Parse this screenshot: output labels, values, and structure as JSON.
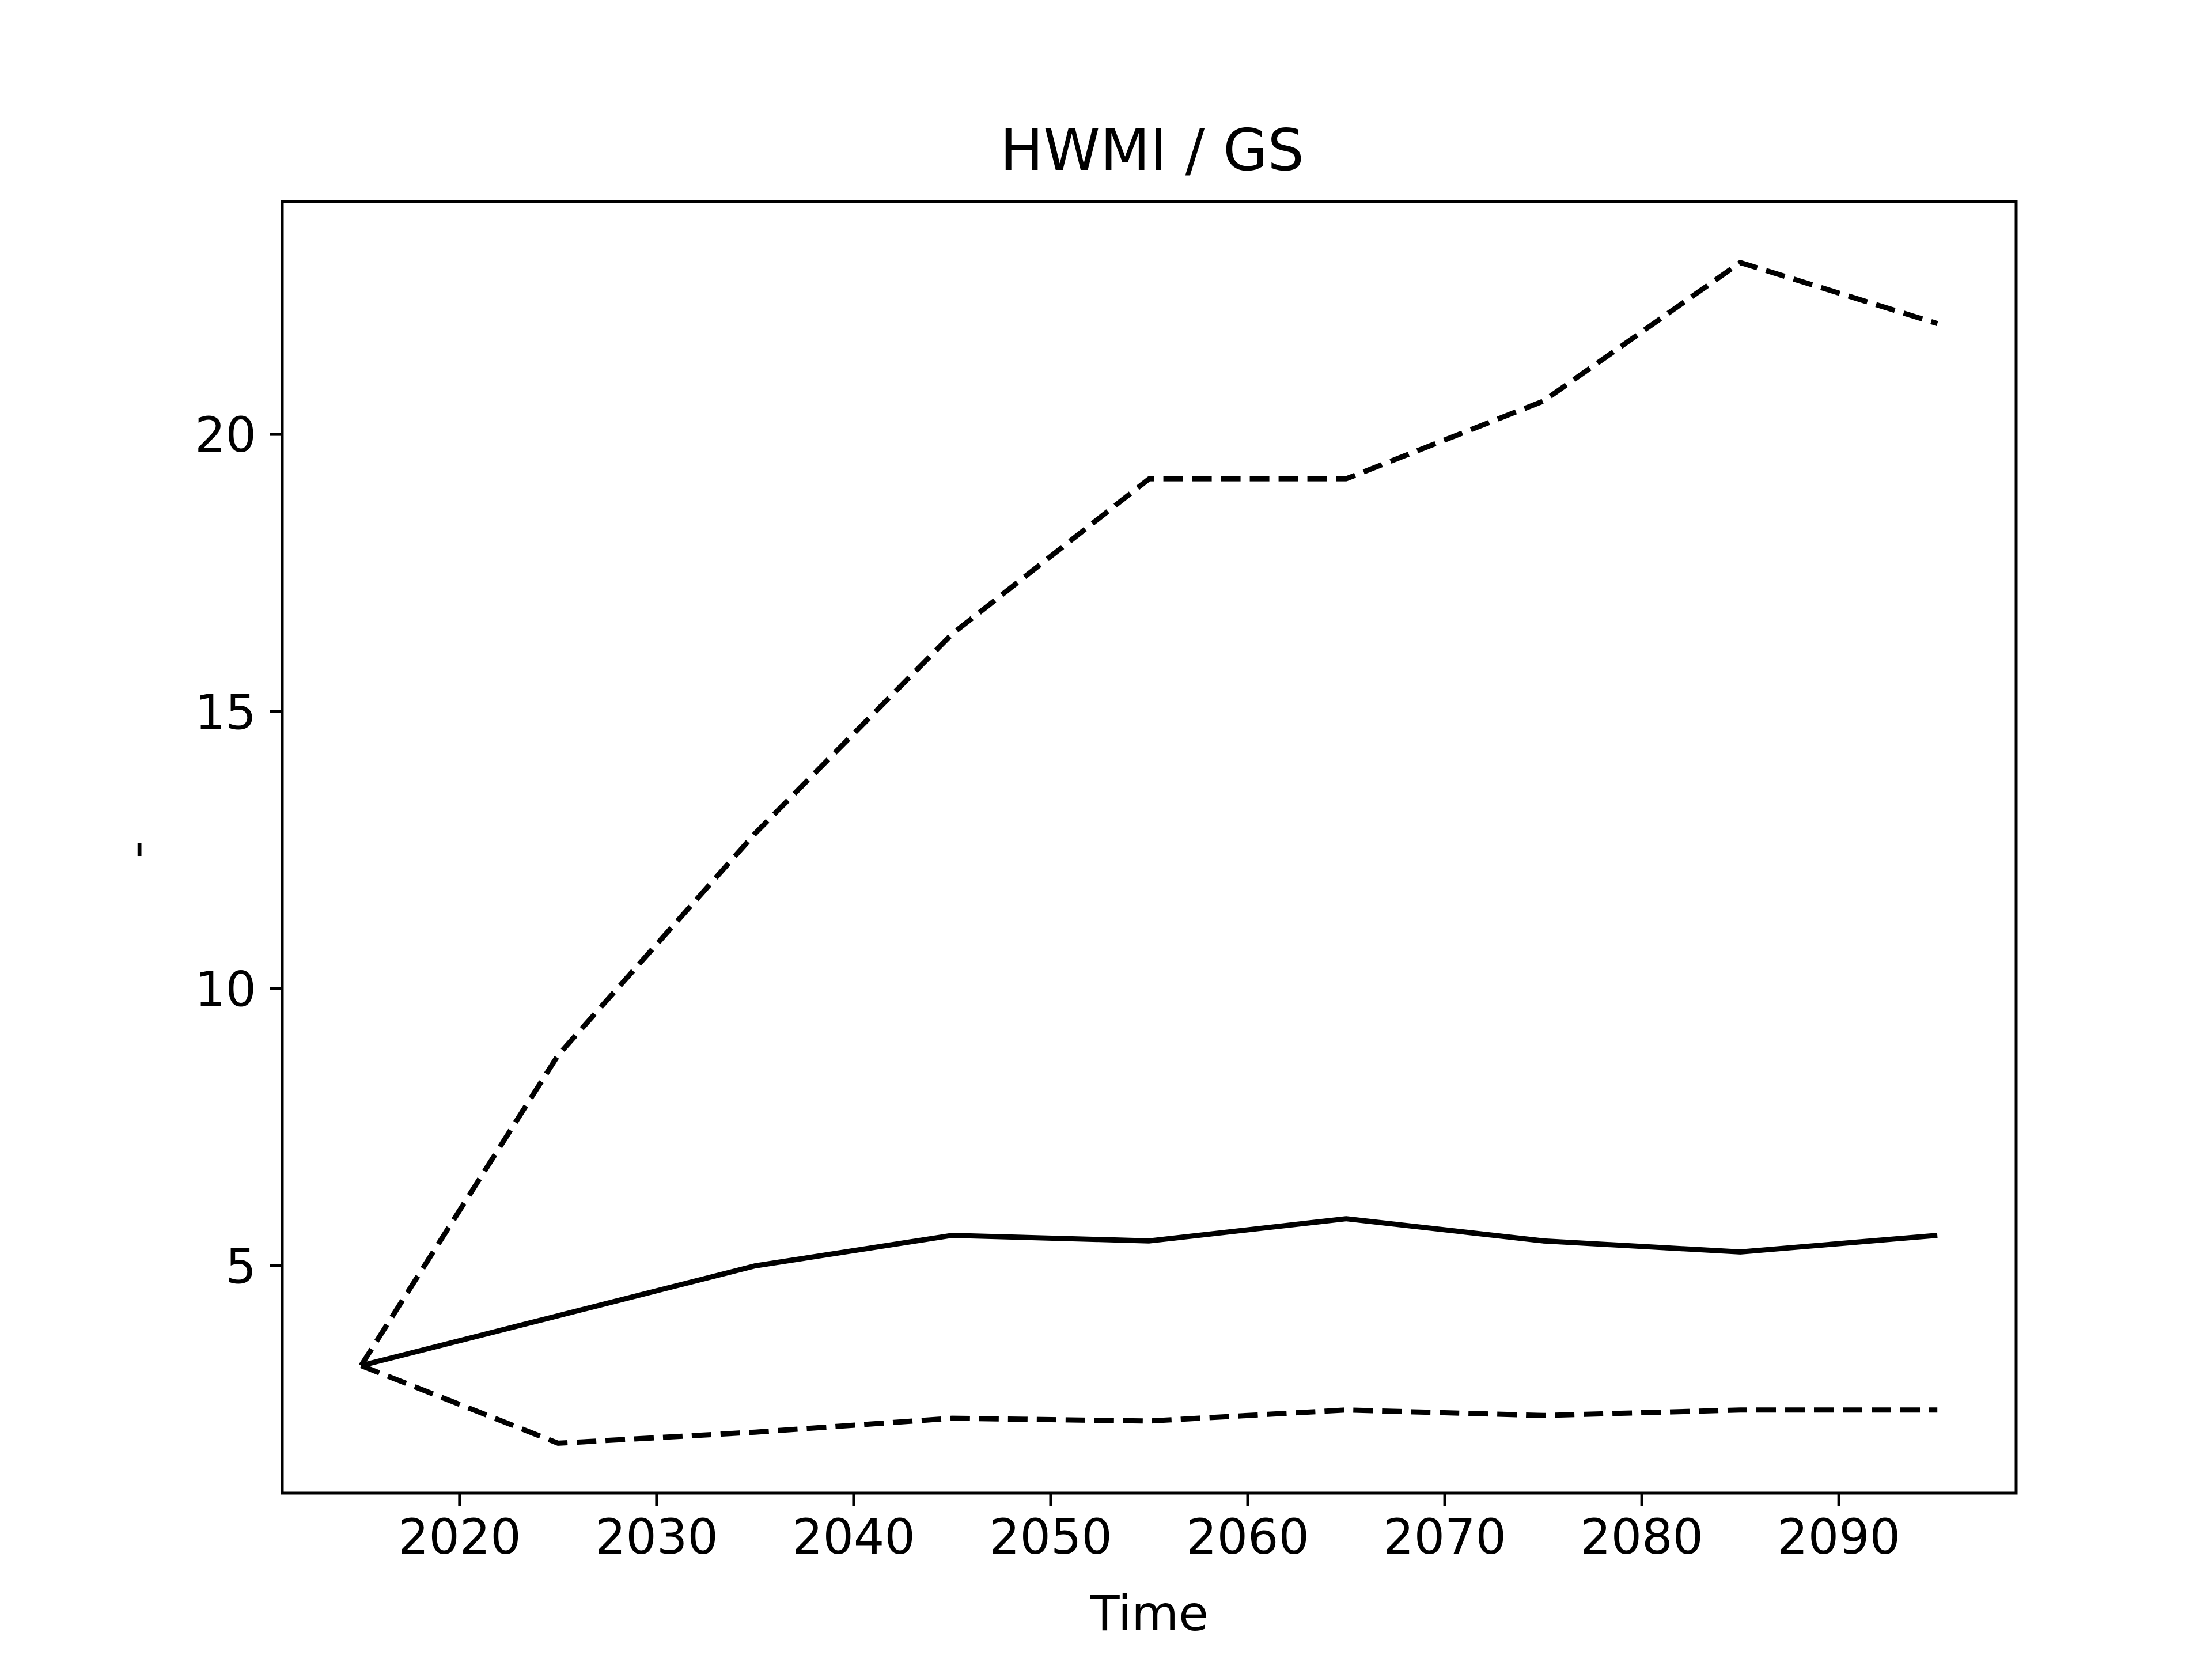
{
  "chart_data": {
    "type": "line",
    "title": "HWMI / GS",
    "xlabel": "Time",
    "ylabel": "-",
    "xlim": [
      2011,
      2099
    ],
    "ylim": [
      0.9,
      24.2
    ],
    "x_ticks": [
      2020,
      2030,
      2040,
      2050,
      2060,
      2070,
      2080,
      2090
    ],
    "y_ticks": [
      5,
      10,
      15,
      20
    ],
    "grid": false,
    "x": [
      2015,
      2025,
      2035,
      2045,
      2055,
      2065,
      2075,
      2085,
      2095
    ],
    "series": [
      {
        "style": "dashed",
        "color": "#000000",
        "values": [
          3.2,
          8.8,
          12.8,
          16.4,
          19.2,
          19.2,
          20.6,
          23.1,
          22.0
        ]
      },
      {
        "style": "solid",
        "color": "#000000",
        "values": [
          3.2,
          4.1,
          5.0,
          5.55,
          5.45,
          5.85,
          5.45,
          5.25,
          5.55
        ]
      },
      {
        "style": "dashed",
        "color": "#000000",
        "values": [
          3.2,
          1.8,
          2.0,
          2.25,
          2.2,
          2.4,
          2.3,
          2.4,
          2.4
        ]
      }
    ]
  }
}
